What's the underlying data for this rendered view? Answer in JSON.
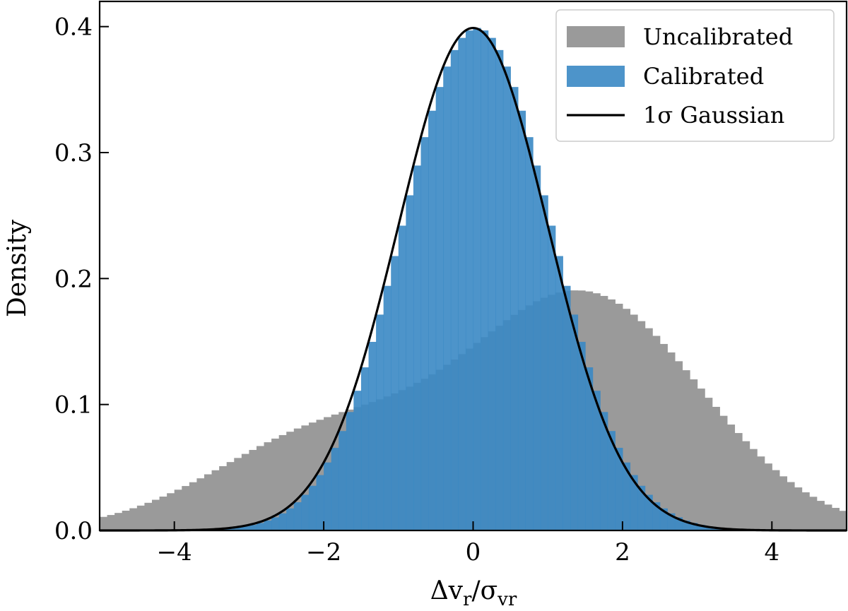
{
  "chart_data": {
    "type": "histogram",
    "xlabel": "Δv_r/σ_vr",
    "ylabel": "Density",
    "xlim": [
      -5,
      5
    ],
    "ylim": [
      0,
      0.42
    ],
    "xticks": [
      -4,
      -2,
      0,
      2,
      4
    ],
    "xtick_labels": [
      "−4",
      "−2",
      "0",
      "2",
      "4"
    ],
    "yticks": [
      0.0,
      0.1,
      0.2,
      0.3,
      0.4
    ],
    "ytick_labels": [
      "0.0",
      "0.1",
      "0.2",
      "0.3",
      "0.4"
    ],
    "grid": false,
    "tick_direction": "in",
    "legend_position": "top-right",
    "bin_width": 0.1,
    "series": [
      {
        "name": "Uncalibrated",
        "kind": "histogram",
        "color": "#9a9a9a",
        "bins": "100 bins of width 0.1 from -5 to 5",
        "shape": {
          "left_mixture": {
            "mean": -2.0,
            "sigma": 1.5,
            "weight": 0.28
          },
          "right_mixture": {
            "mean": 1.5,
            "sigma": 1.55,
            "weight": 0.72
          }
        },
        "anchor_values": [
          {
            "x": -5.0,
            "density": 0.024
          },
          {
            "x": -4.0,
            "density": 0.031
          },
          {
            "x": -3.0,
            "density": 0.047
          },
          {
            "x": -2.0,
            "density": 0.075
          },
          {
            "x": -1.0,
            "density": 0.117
          },
          {
            "x": 0.0,
            "density": 0.16
          },
          {
            "x": 1.0,
            "density": 0.186
          },
          {
            "x": 2.0,
            "density": 0.16
          },
          {
            "x": 3.0,
            "density": 0.107
          },
          {
            "x": 4.0,
            "density": 0.062
          },
          {
            "x": 5.0,
            "density": 0.036
          }
        ]
      },
      {
        "name": "Calibrated",
        "kind": "histogram",
        "color": "#3a88c4",
        "opacity": 0.9,
        "bins": "100 bins of width 0.1 from -5 to 5",
        "shape": {
          "mean": 0.05,
          "sigma": 1.0
        },
        "anchor_values": [
          {
            "x": -2.0,
            "density": 0.056
          },
          {
            "x": -1.0,
            "density": 0.237
          },
          {
            "x": 0.0,
            "density": 0.392
          },
          {
            "x": 1.0,
            "density": 0.26
          },
          {
            "x": 2.0,
            "density": 0.065
          }
        ]
      },
      {
        "name": "1σ Gaussian",
        "kind": "line",
        "color": "#000000",
        "function": "N(0,1) probability density",
        "mean": 0,
        "sigma": 1,
        "peak_density": 0.399
      }
    ]
  }
}
